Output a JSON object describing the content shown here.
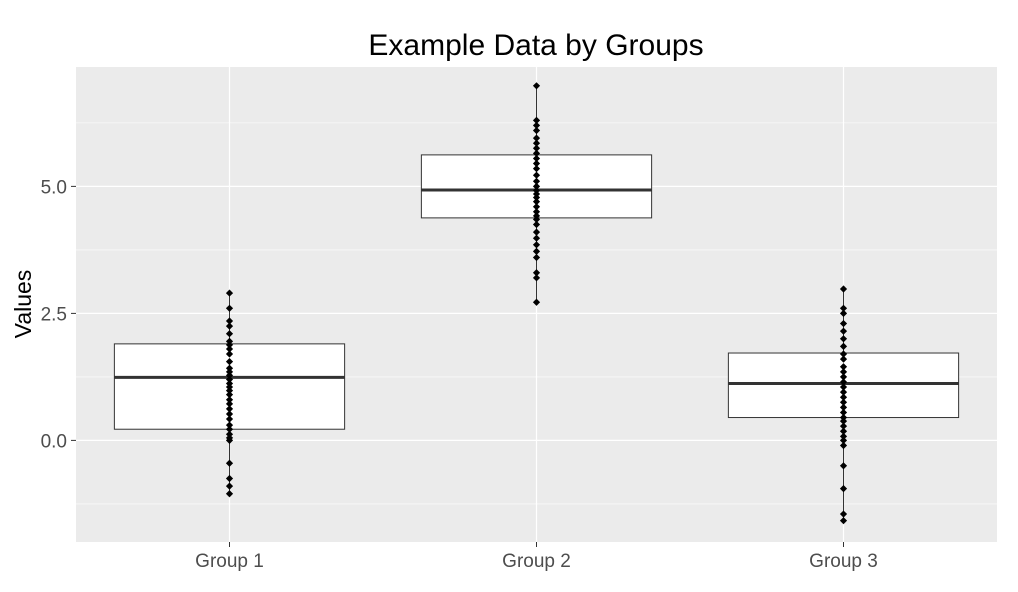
{
  "chart_data": {
    "type": "box",
    "title": "Example Data by Groups",
    "xlabel": "",
    "ylabel": "Values",
    "categories": [
      "Group 1",
      "Group 2",
      "Group 3"
    ],
    "ylim": [
      -2.0,
      7.35
    ],
    "y_ticks": [
      0.0,
      2.5,
      5.0
    ],
    "y_tick_labels": [
      "0.0",
      "2.5",
      "5.0"
    ],
    "grid": true,
    "legend": "none",
    "boxes": [
      {
        "category": "Group 1",
        "whisker_low": -1.05,
        "q1": 0.22,
        "median": 1.24,
        "q3": 1.9,
        "whisker_high": 2.9
      },
      {
        "category": "Group 2",
        "whisker_low": 2.72,
        "q1": 4.38,
        "median": 4.93,
        "q3": 5.62,
        "whisker_high": 6.98
      },
      {
        "category": "Group 3",
        "whisker_low": -1.58,
        "q1": 0.45,
        "median": 1.12,
        "q3": 1.72,
        "whisker_high": 2.98
      }
    ],
    "points": [
      {
        "category": "Group 1",
        "values": [
          2.9,
          2.6,
          2.35,
          2.25,
          2.1,
          1.95,
          1.88,
          1.8,
          1.7,
          1.55,
          1.42,
          1.35,
          1.28,
          1.2,
          1.12,
          1.05,
          0.98,
          0.9,
          0.8,
          0.72,
          0.62,
          0.52,
          0.42,
          0.3,
          0.22,
          0.12,
          0.05,
          0.0,
          -0.45,
          -0.75,
          -0.9,
          -1.05
        ]
      },
      {
        "category": "Group 2",
        "values": [
          6.98,
          6.3,
          6.2,
          6.1,
          5.95,
          5.85,
          5.75,
          5.65,
          5.55,
          5.45,
          5.35,
          5.22,
          5.1,
          5.0,
          4.92,
          4.85,
          4.78,
          4.7,
          4.6,
          4.5,
          4.42,
          4.35,
          4.25,
          4.1,
          3.98,
          3.85,
          3.72,
          3.6,
          3.3,
          3.2,
          2.72
        ]
      },
      {
        "category": "Group 3",
        "values": [
          2.98,
          2.6,
          2.5,
          2.3,
          2.15,
          2.0,
          1.85,
          1.7,
          1.6,
          1.45,
          1.35,
          1.25,
          1.15,
          1.05,
          0.95,
          0.85,
          0.75,
          0.65,
          0.55,
          0.45,
          0.38,
          0.28,
          0.18,
          0.08,
          0.0,
          -0.1,
          -0.5,
          -0.95,
          -1.45,
          -1.58
        ]
      }
    ],
    "colors": {
      "panel_background": "#ebebeb",
      "grid_major": "#ffffff",
      "box_fill": "#ffffff",
      "box_border": "#333333",
      "point": "#000000"
    }
  }
}
